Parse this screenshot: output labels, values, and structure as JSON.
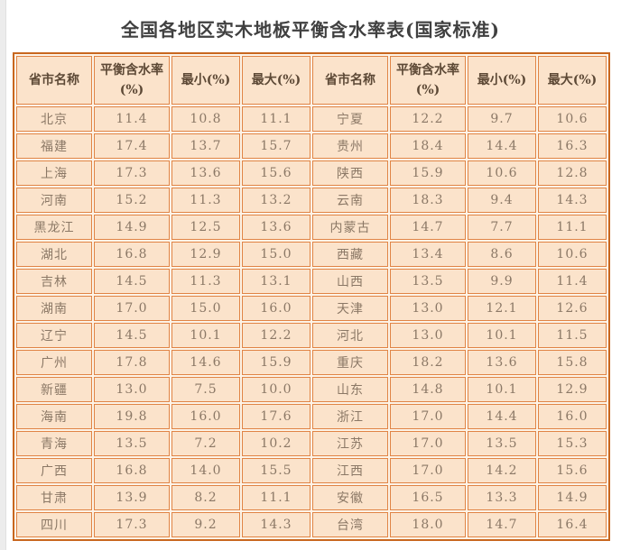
{
  "page": {
    "title": "全国各地区实木地板平衡含水率表(国家标准)"
  },
  "colors": {
    "outer_border": "#c8671f",
    "cell_border": "#e08445",
    "cell_bg": "#fbe3cb",
    "table_gap_bg": "#fdf4e8",
    "header_text": "#5d4936",
    "data_text": "#8b7866",
    "title_text": "#404040",
    "page_bg": "#ffffff",
    "gutter_bg": "#ececec"
  },
  "table": {
    "headers": [
      "省市名称",
      "平衡含水率(%)",
      "最小(%)",
      "最大(%)",
      "省市名称",
      "平衡含水率(%)",
      "最小(%)",
      "最大(%)"
    ],
    "rows": [
      [
        "北京",
        "11.4",
        "10.8",
        "11.1",
        "宁夏",
        "12.2",
        "9.7",
        "10.6"
      ],
      [
        "福建",
        "17.4",
        "13.7",
        "15.7",
        "贵州",
        "18.4",
        "14.4",
        "16.3"
      ],
      [
        "上海",
        "17.3",
        "13.6",
        "15.6",
        "陕西",
        "15.9",
        "10.6",
        "12.8"
      ],
      [
        "河南",
        "15.2",
        "11.3",
        "13.2",
        "云南",
        "18.3",
        "9.4",
        "14.3"
      ],
      [
        "黑龙江",
        "14.9",
        "12.5",
        "13.6",
        "内蒙古",
        "14.7",
        "7.7",
        "11.1"
      ],
      [
        "湖北",
        "16.8",
        "12.9",
        "15.0",
        "西藏",
        "13.4",
        "8.6",
        "10.6"
      ],
      [
        "吉林",
        "14.5",
        "11.3",
        "13.1",
        "山西",
        "13.5",
        "9.9",
        "11.4"
      ],
      [
        "湖南",
        "17.0",
        "15.0",
        "16.0",
        "天津",
        "13.0",
        "12.1",
        "12.6"
      ],
      [
        "辽宁",
        "14.5",
        "10.1",
        "12.2",
        "河北",
        "13.0",
        "10.1",
        "11.5"
      ],
      [
        "广州",
        "17.8",
        "14.6",
        "15.9",
        "重庆",
        "18.2",
        "13.6",
        "15.8"
      ],
      [
        "新疆",
        "13.0",
        "7.5",
        "10.0",
        "山东",
        "14.8",
        "10.1",
        "12.9"
      ],
      [
        "海南",
        "19.8",
        "16.0",
        "17.6",
        "浙江",
        "17.0",
        "14.4",
        "16.0"
      ],
      [
        "青海",
        "13.5",
        "7.2",
        "10.2",
        "江苏",
        "17.0",
        "13.5",
        "15.3"
      ],
      [
        "广西",
        "16.8",
        "14.0",
        "15.5",
        "江西",
        "17.0",
        "14.2",
        "15.6"
      ],
      [
        "甘肃",
        "13.9",
        "8.2",
        "11.1",
        "安徽",
        "16.5",
        "13.3",
        "14.9"
      ],
      [
        "四川",
        "17.3",
        "9.2",
        "14.3",
        "台湾",
        "18.0",
        "14.7",
        "16.4"
      ]
    ]
  }
}
